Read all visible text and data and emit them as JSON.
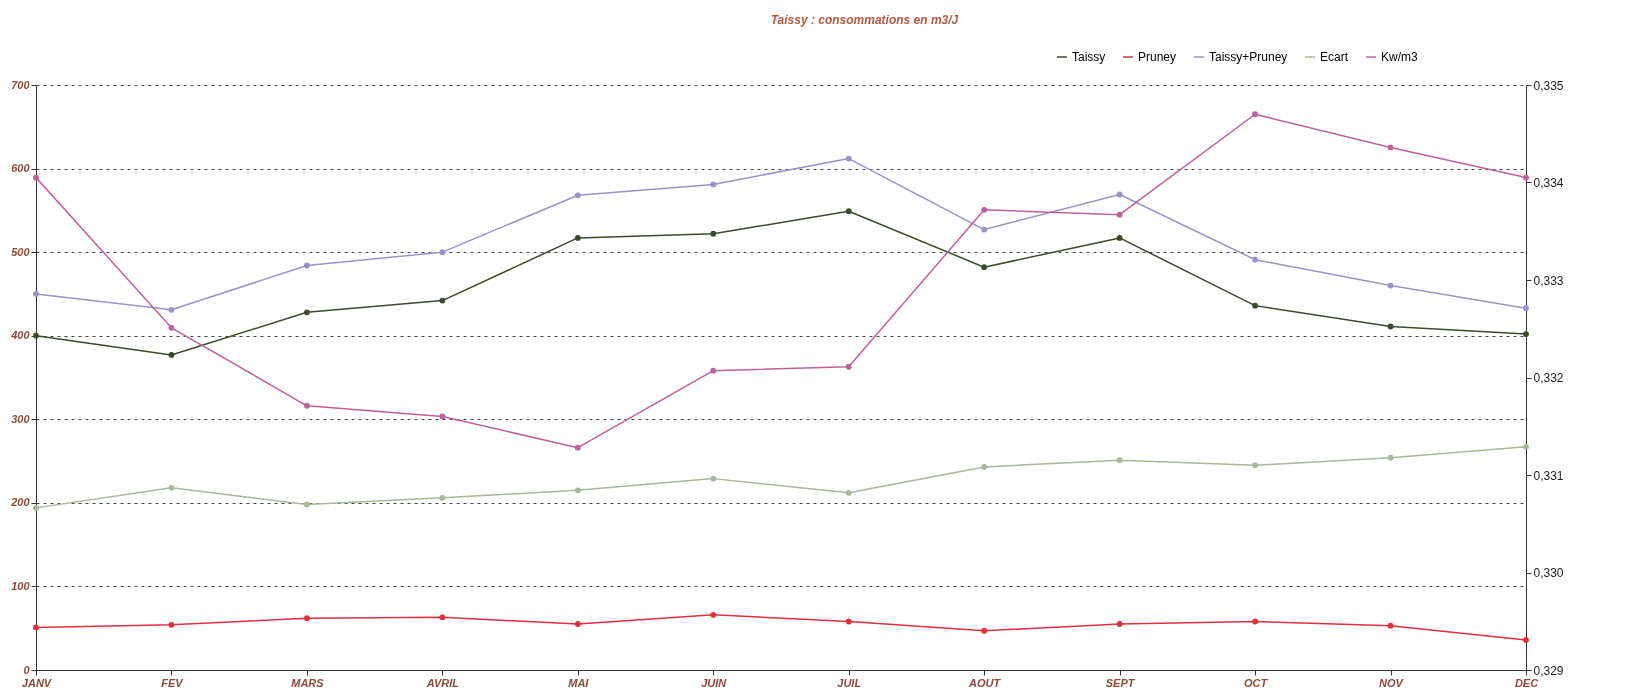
{
  "chart_data": {
    "type": "line",
    "title": "Taissy : consommations en m3/J",
    "categories": [
      "JANV",
      "FEV",
      "MARS",
      "AVRIL",
      "MAI",
      "JUIN",
      "JUIL",
      "AOUT",
      "SEPT",
      "OCT",
      "NOV",
      "DEC"
    ],
    "series": [
      {
        "name": "Taissy",
        "color": "#3b4a2b",
        "values": [
          400,
          377,
          428,
          442,
          517,
          522,
          549,
          482,
          517,
          436,
          411,
          402
        ]
      },
      {
        "name": "Pruney",
        "color": "#e0303c",
        "values": [
          51,
          54,
          62,
          63,
          55,
          66,
          58,
          47,
          55,
          58,
          53,
          36
        ]
      },
      {
        "name": "Taissy+Pruney",
        "color": "#9a92c8",
        "values": [
          450,
          431,
          484,
          500,
          568,
          581,
          612,
          527,
          569,
          491,
          460,
          433
        ]
      },
      {
        "name": "Ecart",
        "color": "#a8b898",
        "values": [
          194,
          218,
          198,
          206,
          215,
          229,
          212,
          243,
          251,
          245,
          254,
          267
        ]
      },
      {
        "name": "Kw/m3",
        "color": "#c0609a",
        "axis": "y2",
        "values": [
          0.33405,
          0.33251,
          0.33171,
          0.3316,
          0.33128,
          0.33207,
          0.33211,
          0.33372,
          0.33367,
          0.3347,
          0.33436,
          0.33405
        ]
      }
    ],
    "ylim": [
      0,
      700
    ],
    "yticks": [
      0,
      100,
      200,
      300,
      400,
      500,
      600,
      700
    ],
    "y2lim": [
      0.329,
      0.335
    ],
    "y2ticks": [
      {
        "value": 0.329,
        "label": "0,329"
      },
      {
        "value": 0.33,
        "label": "0,330"
      },
      {
        "value": 0.331,
        "label": "0,331"
      },
      {
        "value": 0.332,
        "label": "0,332"
      },
      {
        "value": 0.333,
        "label": "0,333"
      },
      {
        "value": 0.334,
        "label": "0,334"
      },
      {
        "value": 0.335,
        "label": "0,335"
      }
    ],
    "grid": "y",
    "legend": "top right",
    "marker": "circle"
  }
}
